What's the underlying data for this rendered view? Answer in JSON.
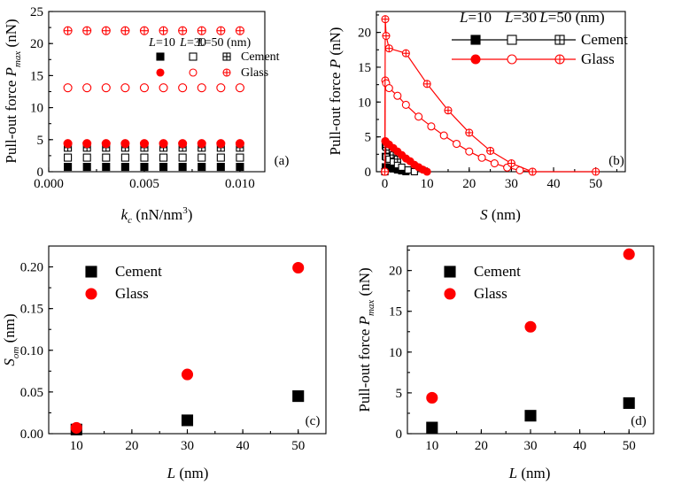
{
  "colors": {
    "cement": "#000000",
    "glass": "#ff0000",
    "glass_light": "#ff5050"
  },
  "chart_data": [
    {
      "id": "a",
      "panel_label": "(a)",
      "type": "scatter",
      "xlabel": "k_c (nN/nm^3)",
      "xlabel_main": "k",
      "xlabel_sub": "c",
      "xlabel_tail": " (nN/nm",
      "xlabel_sup": "3",
      "xlabel_end": ")",
      "ylabel": "Pull-out force P_max (nN)",
      "ylabel_main": "Pull-out force ",
      "ylabel_italic": "P",
      "ylabel_sub": "max",
      "ylabel_unit": " (nN)",
      "xlim": [
        0,
        0.0113
      ],
      "ylim": [
        0,
        25
      ],
      "xticks": [
        "0.000",
        "0.005",
        "0.010"
      ],
      "yticks": [
        "0",
        "5",
        "10",
        "15",
        "20",
        "25"
      ],
      "legend_header": [
        "L=10",
        "L=30",
        "L=50 (nm)"
      ],
      "legend_rows": [
        "Cement",
        "Glass"
      ],
      "legend_position": "upper-middle",
      "x": [
        0.001,
        0.002,
        0.003,
        0.004,
        0.005,
        0.006,
        0.007,
        0.008,
        0.009,
        0.01
      ],
      "series": [
        {
          "name": "Cement L=10",
          "material": "cement",
          "marker": "filled-square",
          "y": 0.75
        },
        {
          "name": "Cement L=30",
          "material": "cement",
          "marker": "open-square",
          "y": 2.2
        },
        {
          "name": "Cement L=50",
          "material": "cement",
          "marker": "crossed-square",
          "y": 3.75
        },
        {
          "name": "Glass L=10",
          "material": "glass",
          "marker": "filled-circle",
          "y": 4.4
        },
        {
          "name": "Glass L=30",
          "material": "glass",
          "marker": "open-circle",
          "y": 13.1
        },
        {
          "name": "Glass L=50",
          "material": "glass",
          "marker": "crossed-circle",
          "y": 22.0
        }
      ]
    },
    {
      "id": "b",
      "panel_label": "(b)",
      "type": "line",
      "xlabel": "S (nm)",
      "ylabel": "Pull-out force P (nN)",
      "ylabel_main": "Pull-out force ",
      "ylabel_italic": "P",
      "ylabel_unit": " (nN)",
      "xlim": [
        -2,
        57
      ],
      "ylim": [
        0,
        23
      ],
      "xticks": [
        "0",
        "10",
        "20",
        "30",
        "40",
        "50"
      ],
      "yticks": [
        "0",
        "5",
        "10",
        "15",
        "20"
      ],
      "legend_header": [
        "L=10",
        "L=30",
        "L=50 (nm)"
      ],
      "legend_rows": [
        "Cement",
        "Glass"
      ],
      "legend_position": "top-right",
      "series": [
        {
          "name": "Cement L=10",
          "material": "cement",
          "marker": "filled-square",
          "x": [
            0,
            0.1,
            0.3,
            1.0,
            2.0,
            3.0,
            4.0,
            5.0
          ],
          "y": [
            0,
            0.7,
            0.65,
            0.55,
            0.4,
            0.25,
            0.12,
            0
          ]
        },
        {
          "name": "Cement L=30",
          "material": "cement",
          "marker": "open-square",
          "x": [
            0,
            0.1,
            0.3,
            1.0,
            2.0,
            3.0,
            4.0,
            5.5,
            7.0
          ],
          "y": [
            0,
            2.2,
            2.1,
            1.8,
            1.4,
            1.0,
            0.65,
            0.25,
            0
          ]
        },
        {
          "name": "Cement L=50",
          "material": "cement",
          "marker": "crossed-square",
          "x": [
            0,
            0.1,
            0.3,
            1.0,
            2.0,
            3.0
          ],
          "y": [
            0,
            3.7,
            3.5,
            3.1,
            2.4,
            1.8
          ]
        },
        {
          "name": "Glass L=10",
          "material": "glass",
          "marker": "filled-circle",
          "x": [
            0,
            0.1,
            0.3,
            1.0,
            2.0,
            3.0,
            4.0,
            5.0,
            6.0,
            7.0,
            8.0,
            9.0,
            10.0
          ],
          "y": [
            0,
            4.4,
            4.2,
            3.9,
            3.4,
            2.9,
            2.4,
            1.9,
            1.5,
            1.0,
            0.65,
            0.3,
            0
          ]
        },
        {
          "name": "Glass L=30",
          "material": "glass",
          "marker": "open-circle",
          "x": [
            0,
            0.1,
            0.3,
            1.0,
            3.0,
            5.0,
            8.0,
            11.0,
            14.0,
            17.0,
            20.0,
            23.0,
            26.0,
            29.0,
            32.0,
            35.0
          ],
          "y": [
            0,
            13.1,
            12.7,
            12.0,
            10.9,
            9.6,
            7.9,
            6.5,
            5.2,
            4.0,
            2.9,
            2.0,
            1.2,
            0.6,
            0.2,
            0
          ]
        },
        {
          "name": "Glass L=50",
          "material": "glass",
          "marker": "crossed-circle",
          "x": [
            0,
            0.1,
            0.3,
            1.0,
            5.0,
            10.0,
            15.0,
            20.0,
            25.0,
            30.0,
            35.0,
            50.0
          ],
          "y": [
            0,
            21.9,
            19.5,
            17.7,
            17.0,
            12.6,
            8.8,
            5.6,
            3.0,
            1.2,
            0,
            0
          ]
        }
      ]
    },
    {
      "id": "c",
      "panel_label": "(c)",
      "type": "scatter",
      "xlabel": "L (nm)",
      "ylabel": "S_om (nm)",
      "ylabel_main": "S",
      "ylabel_sub": "om",
      "ylabel_unit": " (nm)",
      "xlim": [
        5,
        55
      ],
      "ylim": [
        0,
        0.225
      ],
      "xticks": [
        "10",
        "20",
        "30",
        "40",
        "50"
      ],
      "yticks": [
        "0.00",
        "0.05",
        "0.10",
        "0.15",
        "0.20"
      ],
      "legend_rows": [
        "Cement",
        "Glass"
      ],
      "legend_position": "upper-left",
      "series": [
        {
          "name": "Cement",
          "material": "cement",
          "marker": "filled-square",
          "x": [
            10,
            30,
            50
          ],
          "y": [
            0.005,
            0.016,
            0.045
          ]
        },
        {
          "name": "Glass",
          "material": "glass",
          "marker": "filled-circle",
          "x": [
            10,
            30,
            50
          ],
          "y": [
            0.007,
            0.071,
            0.199
          ]
        }
      ]
    },
    {
      "id": "d",
      "panel_label": "(d)",
      "type": "scatter",
      "xlabel": "L (nm)",
      "ylabel": "Pull-out force P_max (nN)",
      "ylabel_main": "Pull-out force ",
      "ylabel_italic": "P",
      "ylabel_sub": "max",
      "ylabel_unit": " (nN)",
      "xlim": [
        5,
        55
      ],
      "ylim": [
        0,
        23
      ],
      "xticks": [
        "10",
        "20",
        "30",
        "40",
        "50"
      ],
      "yticks": [
        "0",
        "5",
        "10",
        "15",
        "20"
      ],
      "legend_rows": [
        "Cement",
        "Glass"
      ],
      "legend_position": "upper-left",
      "series": [
        {
          "name": "Cement",
          "material": "cement",
          "marker": "filled-square",
          "x": [
            10,
            30,
            50
          ],
          "y": [
            0.75,
            2.2,
            3.75
          ]
        },
        {
          "name": "Glass",
          "material": "glass",
          "marker": "filled-circle",
          "x": [
            10,
            30,
            50
          ],
          "y": [
            4.4,
            13.1,
            22.0
          ]
        }
      ]
    }
  ]
}
